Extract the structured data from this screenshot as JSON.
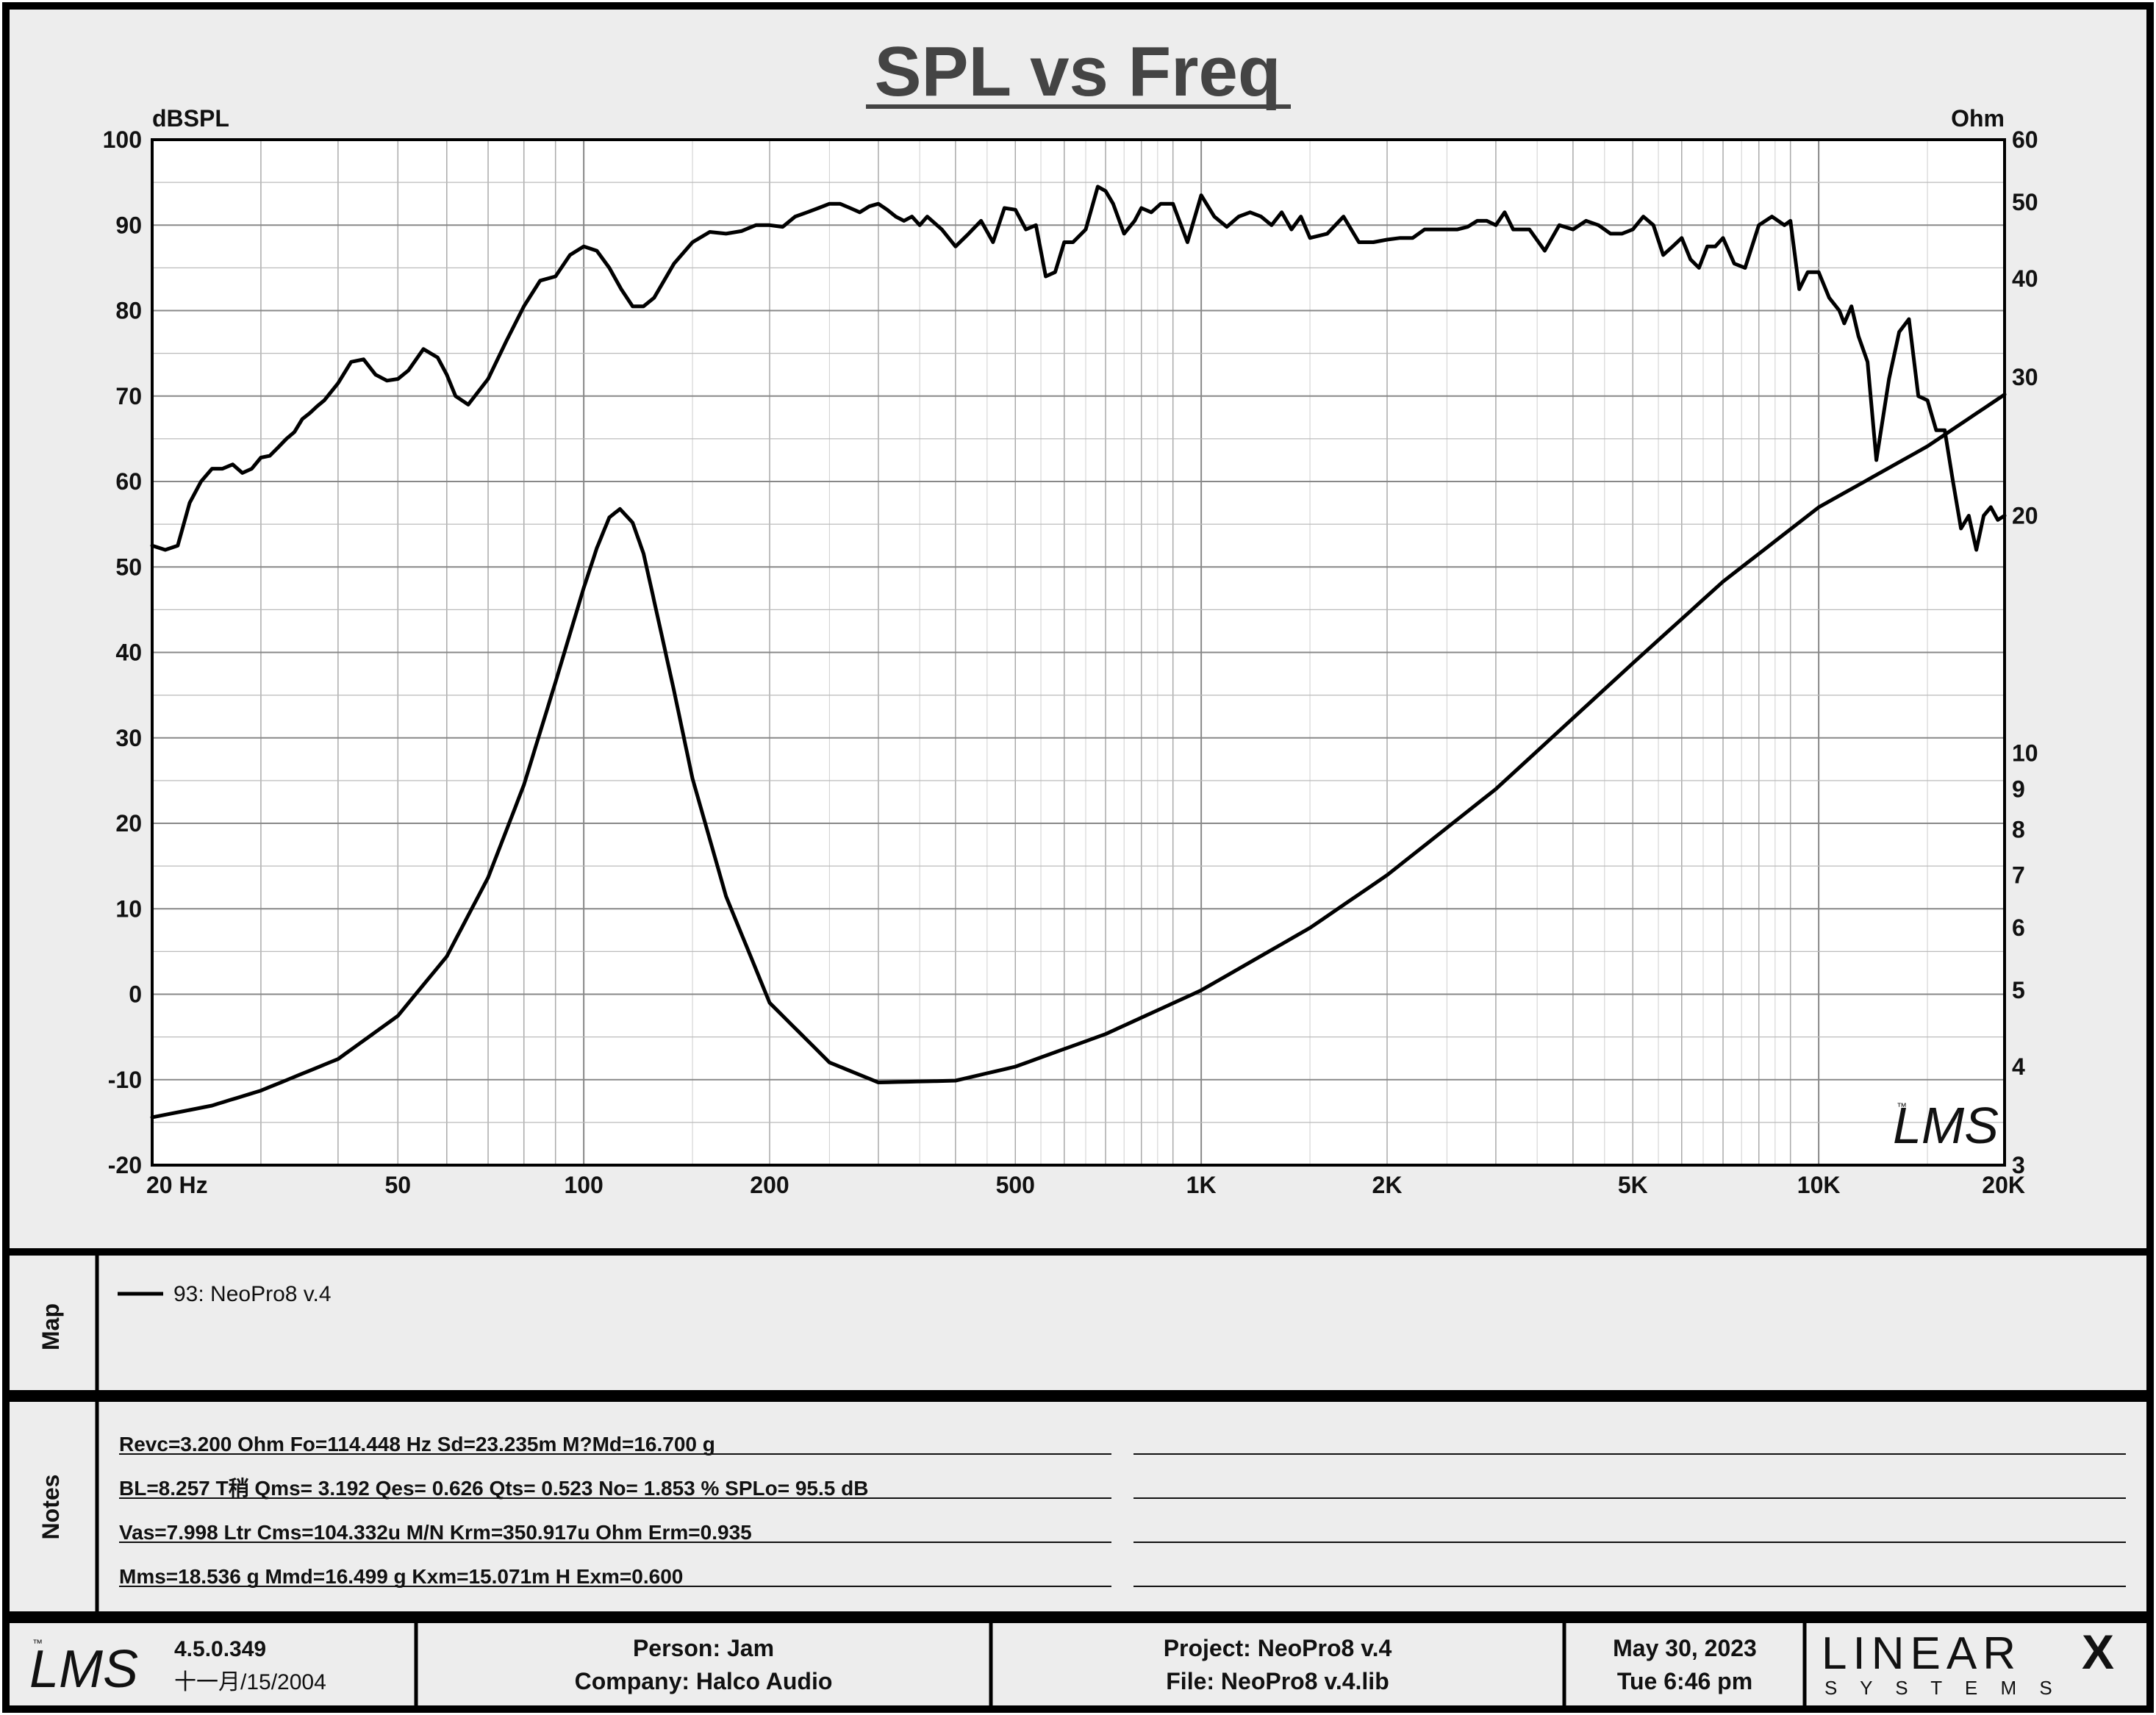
{
  "title": "SPL vs Freq",
  "logo_text": "LMS",
  "chart_data": {
    "type": "line",
    "title": "SPL vs Freq",
    "xscale": "log",
    "xlim": [
      20,
      20000
    ],
    "x_ticks": [
      {
        "value": 20,
        "label": "20  Hz"
      },
      {
        "value": 50,
        "label": "50"
      },
      {
        "value": 100,
        "label": "100"
      },
      {
        "value": 200,
        "label": "200"
      },
      {
        "value": 500,
        "label": "500"
      },
      {
        "value": 1000,
        "label": "1K"
      },
      {
        "value": 2000,
        "label": "2K"
      },
      {
        "value": 5000,
        "label": "5K"
      },
      {
        "value": 10000,
        "label": "10K"
      },
      {
        "value": 20000,
        "label": "20K"
      }
    ],
    "y_left": {
      "label": "dBSPL",
      "lim": [
        -20,
        100
      ],
      "ticks": [
        100,
        90,
        80,
        70,
        60,
        50,
        40,
        30,
        20,
        10,
        0,
        -10,
        -20
      ]
    },
    "y_right": {
      "label": "Ohm",
      "scale": "log",
      "lim": [
        3,
        60
      ],
      "ticks": [
        60,
        50,
        40,
        30,
        20,
        10,
        9,
        8,
        7,
        6,
        5,
        4,
        3
      ]
    },
    "grid": true,
    "series": [
      {
        "name": "93: NeoPro8 v.4",
        "axis": "left",
        "x": [
          20,
          21,
          22,
          23,
          24,
          25,
          26,
          27,
          28,
          29,
          30,
          31,
          32,
          33,
          34,
          35,
          36,
          37,
          38,
          40,
          42,
          44,
          46,
          48,
          50,
          52,
          55,
          58,
          60,
          62,
          65,
          70,
          75,
          80,
          85,
          90,
          95,
          100,
          105,
          110,
          115,
          120,
          125,
          130,
          140,
          150,
          160,
          170,
          180,
          190,
          200,
          210,
          220,
          230,
          240,
          250,
          260,
          270,
          280,
          290,
          300,
          310,
          320,
          330,
          340,
          350,
          360,
          380,
          400,
          420,
          440,
          460,
          480,
          500,
          520,
          540,
          560,
          580,
          600,
          620,
          650,
          680,
          700,
          720,
          750,
          780,
          800,
          830,
          860,
          900,
          950,
          1000,
          1050,
          1100,
          1150,
          1200,
          1250,
          1300,
          1350,
          1400,
          1450,
          1500,
          1600,
          1700,
          1800,
          1900,
          2000,
          2100,
          2200,
          2300,
          2400,
          2500,
          2600,
          2700,
          2800,
          2900,
          3000,
          3100,
          3200,
          3400,
          3600,
          3800,
          4000,
          4200,
          4400,
          4600,
          4800,
          5000,
          5200,
          5400,
          5600,
          5800,
          6000,
          6200,
          6400,
          6600,
          6800,
          7000,
          7300,
          7600,
          8000,
          8400,
          8800,
          9000,
          9300,
          9600,
          10000,
          10400,
          10800,
          11000,
          11300,
          11600,
          12000,
          12400,
          13000,
          13500,
          14000,
          14500,
          15000,
          15500,
          16000,
          16500,
          17000,
          17500,
          18000,
          18500,
          19000,
          19500,
          20000
        ],
        "y": [
          52.5,
          52.0,
          52.5,
          57.5,
          60.0,
          61.5,
          61.5,
          62.0,
          61.0,
          61.5,
          62.8,
          63.0,
          64.0,
          65.0,
          65.8,
          67.3,
          68.0,
          68.8,
          69.5,
          71.5,
          74.0,
          74.3,
          72.5,
          71.8,
          72.0,
          73.0,
          75.5,
          74.5,
          72.5,
          70.0,
          69.0,
          72.0,
          76.5,
          80.5,
          83.5,
          84.0,
          86.5,
          87.5,
          87.0,
          85.0,
          82.5,
          80.5,
          80.5,
          81.5,
          85.5,
          88.0,
          89.2,
          89.0,
          89.3,
          90.0,
          90.0,
          89.8,
          91.0,
          91.5,
          92.0,
          92.5,
          92.5,
          92.0,
          91.5,
          92.2,
          92.5,
          91.8,
          91.0,
          90.5,
          91.0,
          90.0,
          91.0,
          89.5,
          87.5,
          89.0,
          90.5,
          88.0,
          92.0,
          91.8,
          89.5,
          90.0,
          84.0,
          84.5,
          88.0,
          88.0,
          89.5,
          94.5,
          94.0,
          92.5,
          89.0,
          90.5,
          92.0,
          91.5,
          92.5,
          92.5,
          88.0,
          93.5,
          91.0,
          89.8,
          91.0,
          91.5,
          91.0,
          90.0,
          91.5,
          89.5,
          91.0,
          88.5,
          89.0,
          91.0,
          88.0,
          88.0,
          88.3,
          88.5,
          88.5,
          89.5,
          89.5,
          89.5,
          89.5,
          89.8,
          90.5,
          90.5,
          90.0,
          91.5,
          89.5,
          89.5,
          87.0,
          90.0,
          89.5,
          90.5,
          90.0,
          89.0,
          89.0,
          89.5,
          91.0,
          90.0,
          86.5,
          87.5,
          88.5,
          86.0,
          85.0,
          87.5,
          87.5,
          88.5,
          85.5,
          85.0,
          90.0,
          91.0,
          90.0,
          90.5,
          82.5,
          84.5,
          84.5,
          81.5,
          80.0,
          78.5,
          80.5,
          77.0,
          74.0,
          62.5,
          72.0,
          77.5,
          79.0,
          70.0,
          69.5,
          66.0,
          66.0,
          60.0,
          54.5,
          56.0,
          52.0,
          56.0,
          57.0,
          55.5,
          56.0
        ]
      },
      {
        "name": "93: NeoPro8 v.4",
        "axis": "right",
        "x": [
          20,
          25,
          30,
          40,
          50,
          60,
          70,
          80,
          90,
          100,
          105,
          110,
          114.448,
          120,
          125,
          130,
          140,
          150,
          170,
          200,
          250,
          300,
          400,
          500,
          700,
          1000,
          1500,
          2000,
          3000,
          5000,
          7000,
          10000,
          15000,
          20000
        ],
        "y": [
          3.45,
          3.57,
          3.73,
          4.09,
          4.64,
          5.52,
          6.95,
          9.11,
          12.3,
          16.2,
          18.2,
          19.9,
          20.4,
          19.6,
          17.9,
          15.6,
          12.0,
          9.28,
          6.58,
          4.82,
          4.05,
          3.82,
          3.84,
          4.0,
          4.4,
          5.0,
          6.0,
          7.0,
          9.0,
          13.0,
          16.5,
          20.5,
          24.5,
          28.5
        ]
      }
    ]
  },
  "map": {
    "label": "Map",
    "entries": [
      "93: NeoPro8 v.4"
    ]
  },
  "notes": {
    "label": "Notes",
    "lines": [
      "Revc=3.200 Ohm  Fo=114.448 Hz  Sd=23.235m M?Md=16.700 g",
      "BL=8.257 T稍  Qms= 3.192  Qes= 0.626  Qts= 0.523  No= 1.853 %  SPLo= 95.5 dB",
      "Vas=7.998 Ltr  Cms=104.332u M/N  Krm=350.917u Ohm  Erm=0.935",
      "Mms=18.536 g  Mmd=16.499 g  Kxm=15.071m H  Exm=0.600"
    ]
  },
  "footer": {
    "logo_text": "LMS",
    "version": "4.5.0.349",
    "date_cn": "十一月/15/2004",
    "person": "Person: Jam",
    "company": "Company: Halco Audio",
    "project": "Project: NeoPro8 v.4",
    "file": "File: NeoPro8 v.4.lib",
    "date": "May 30, 2023",
    "time": "Tue  6:46 pm",
    "brand_main": "LINEAR",
    "brand_x": "X",
    "brand_sub": "S Y S T E M S"
  }
}
